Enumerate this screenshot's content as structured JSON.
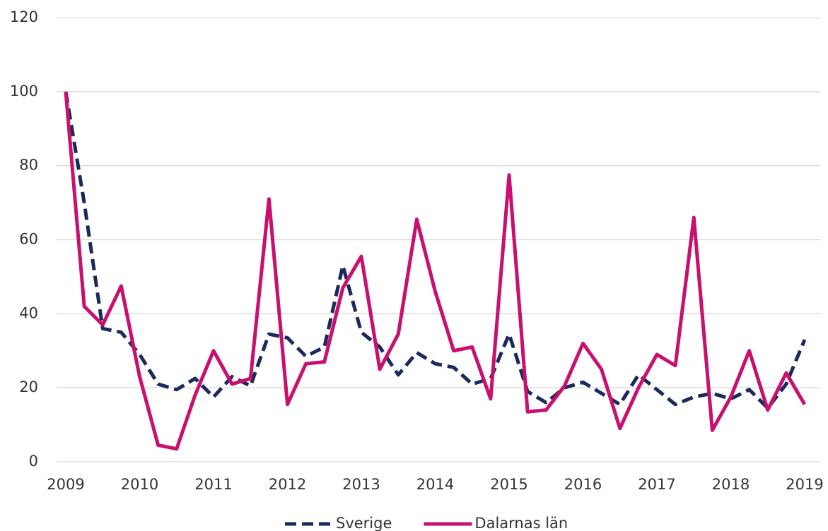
{
  "chart_data": {
    "type": "line",
    "x": [
      2009,
      2009.25,
      2009.5,
      2009.75,
      2010,
      2010.25,
      2010.5,
      2010.75,
      2011,
      2011.25,
      2011.5,
      2011.75,
      2012,
      2012.25,
      2012.5,
      2012.75,
      2013,
      2013.25,
      2013.5,
      2013.75,
      2014,
      2014.25,
      2014.5,
      2014.75,
      2015,
      2015.25,
      2015.5,
      2015.75,
      2016,
      2016.25,
      2016.5,
      2016.75,
      2017,
      2017.25,
      2017.5,
      2017.75,
      2018,
      2018.25,
      2018.5,
      2018.75,
      2019
    ],
    "series": [
      {
        "name": "Sverige",
        "color": "#1b2a5c",
        "dash": true,
        "values": [
          100,
          70,
          36,
          35,
          29,
          21,
          19.5,
          22.5,
          17.5,
          23,
          20.5,
          34.5,
          33.5,
          28.5,
          31,
          53,
          35,
          31,
          23.5,
          29.5,
          26.5,
          25.5,
          21,
          22.5,
          34.5,
          19,
          16,
          20,
          21.5,
          18.5,
          15.5,
          23.5,
          19.5,
          15.5,
          17.5,
          18.5,
          17,
          19.5,
          14.5,
          21,
          33
        ]
      },
      {
        "name": "Dalarnas län",
        "color": "#c8106e",
        "dash": false,
        "values": [
          100,
          42,
          37,
          47.5,
          23,
          4.5,
          3.5,
          18,
          30,
          21,
          22.5,
          71,
          15.5,
          26.5,
          27,
          47,
          55.5,
          25,
          34.5,
          65.5,
          46,
          30,
          31,
          17,
          77.5,
          13.5,
          14,
          20.5,
          32,
          25,
          9,
          20,
          29,
          26,
          66,
          8.5,
          17.5,
          30,
          14,
          24,
          15.5
        ]
      }
    ],
    "xlim": [
      2009,
      2019
    ],
    "xticks": [
      2009,
      2010,
      2011,
      2012,
      2013,
      2014,
      2015,
      2016,
      2017,
      2018,
      2019
    ],
    "ylim": [
      0,
      120
    ],
    "yticks": [
      0,
      20,
      40,
      60,
      80,
      100,
      120
    ],
    "grid": true,
    "legend": "bottom"
  }
}
